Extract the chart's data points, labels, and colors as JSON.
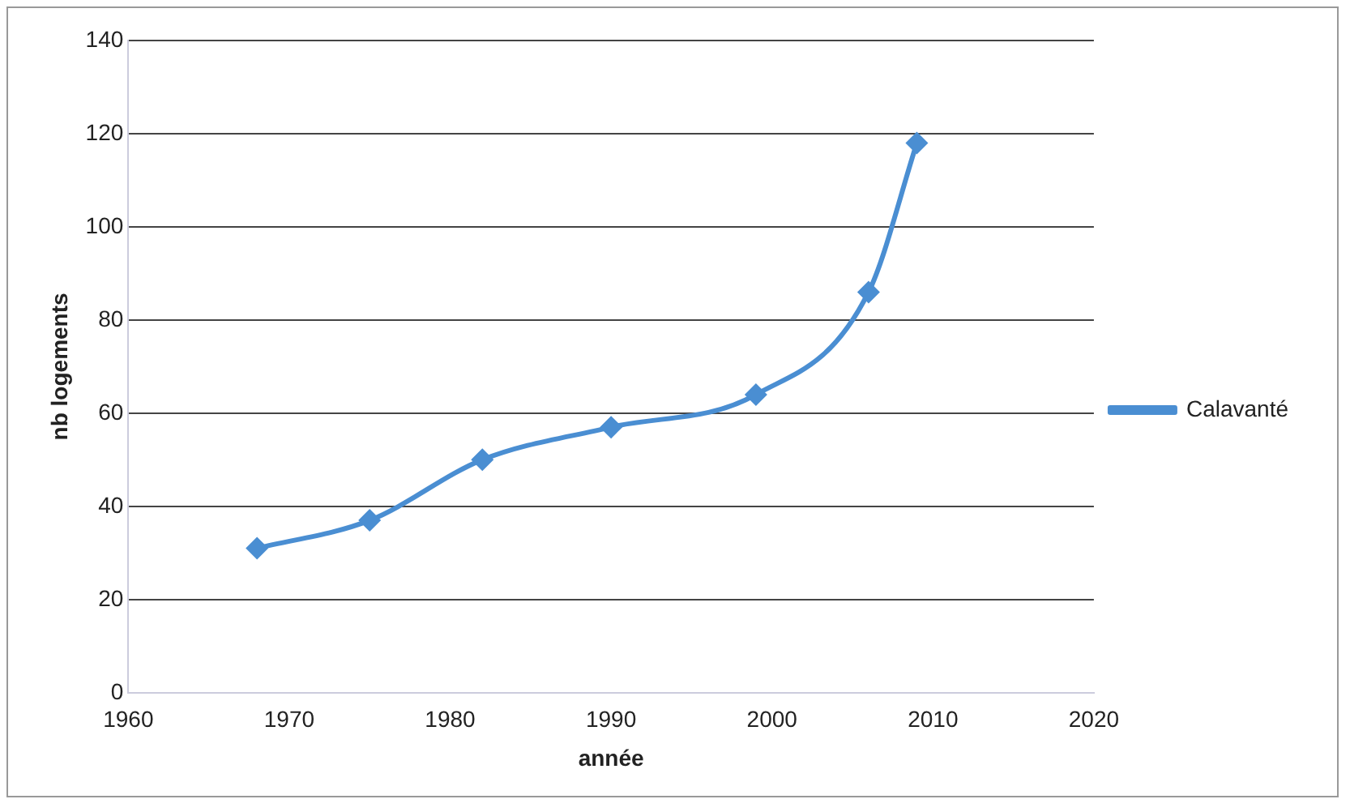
{
  "chart_data": {
    "type": "line",
    "xlabel": "année",
    "ylabel": "nb logements",
    "x": [
      1968,
      1975,
      1982,
      1990,
      1999,
      2006,
      2009
    ],
    "series": [
      {
        "name": "Calavanté",
        "color": "#4a8ed2",
        "values": [
          31,
          37,
          50,
          57,
          64,
          86,
          118
        ]
      }
    ],
    "xlim": [
      1960,
      2020
    ],
    "xticks": [
      1960,
      1970,
      1980,
      1990,
      2000,
      2010,
      2020
    ],
    "ylim": [
      0,
      140
    ],
    "yticks": [
      0,
      20,
      40,
      60,
      80,
      100,
      120,
      140
    ],
    "grid": "y",
    "legend": "right",
    "marker": "diamond",
    "line_style": "solid"
  }
}
